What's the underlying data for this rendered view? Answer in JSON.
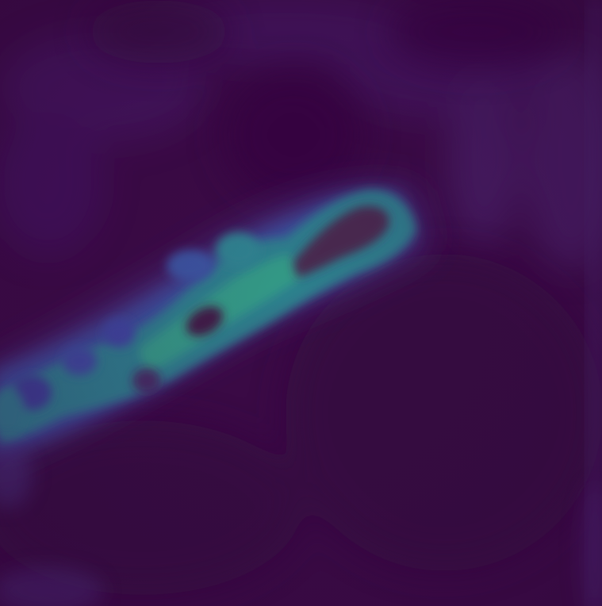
{
  "image": {
    "kind": "heatmap-overlay",
    "colormap": "viridis",
    "colors": {
      "background": "#3a0a45",
      "low": "#44106a",
      "mid_low": "#3b4c9a",
      "mid": "#2a7b8e",
      "high": "#2f9e86",
      "core": "#4a2c4f"
    }
  }
}
